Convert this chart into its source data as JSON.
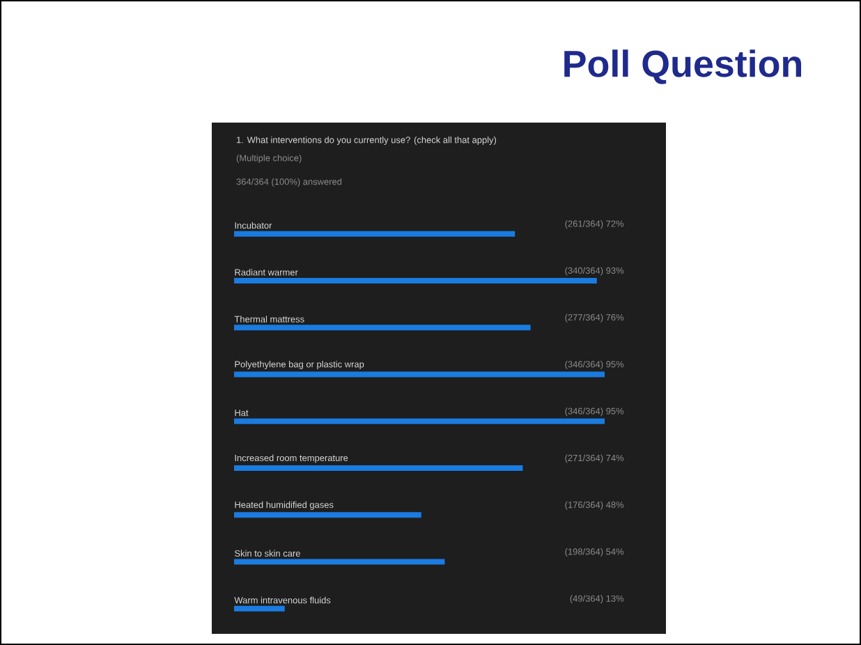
{
  "chart_data": {
    "type": "bar",
    "orientation": "horizontal",
    "title": "Poll Question",
    "subtitle": "1. What interventions do you currently use?  (check all that apply)",
    "annotations": [
      "(Multiple choice)",
      "364/364 (100%) answered"
    ],
    "categories": [
      "Incubator",
      "Radiant warmer",
      "Thermal mattress",
      "Polyethylene bag or plastic wrap",
      "Hat",
      "Increased room temperature",
      "Heated humidified gases",
      "Skin to skin care",
      "Warm intravenous fluids"
    ],
    "values": [
      72,
      93,
      76,
      95,
      95,
      74,
      48,
      54,
      13
    ],
    "value_labels": [
      "(261/364) 72%",
      "(340/364) 93%",
      "(277/364) 76%",
      "(346/364) 95%",
      "(346/364) 95%",
      "(271/364) 74%",
      "(176/364) 48%",
      "(198/364) 54%",
      "(49/364) 13%"
    ],
    "color": "#1a7be0"
  }
}
